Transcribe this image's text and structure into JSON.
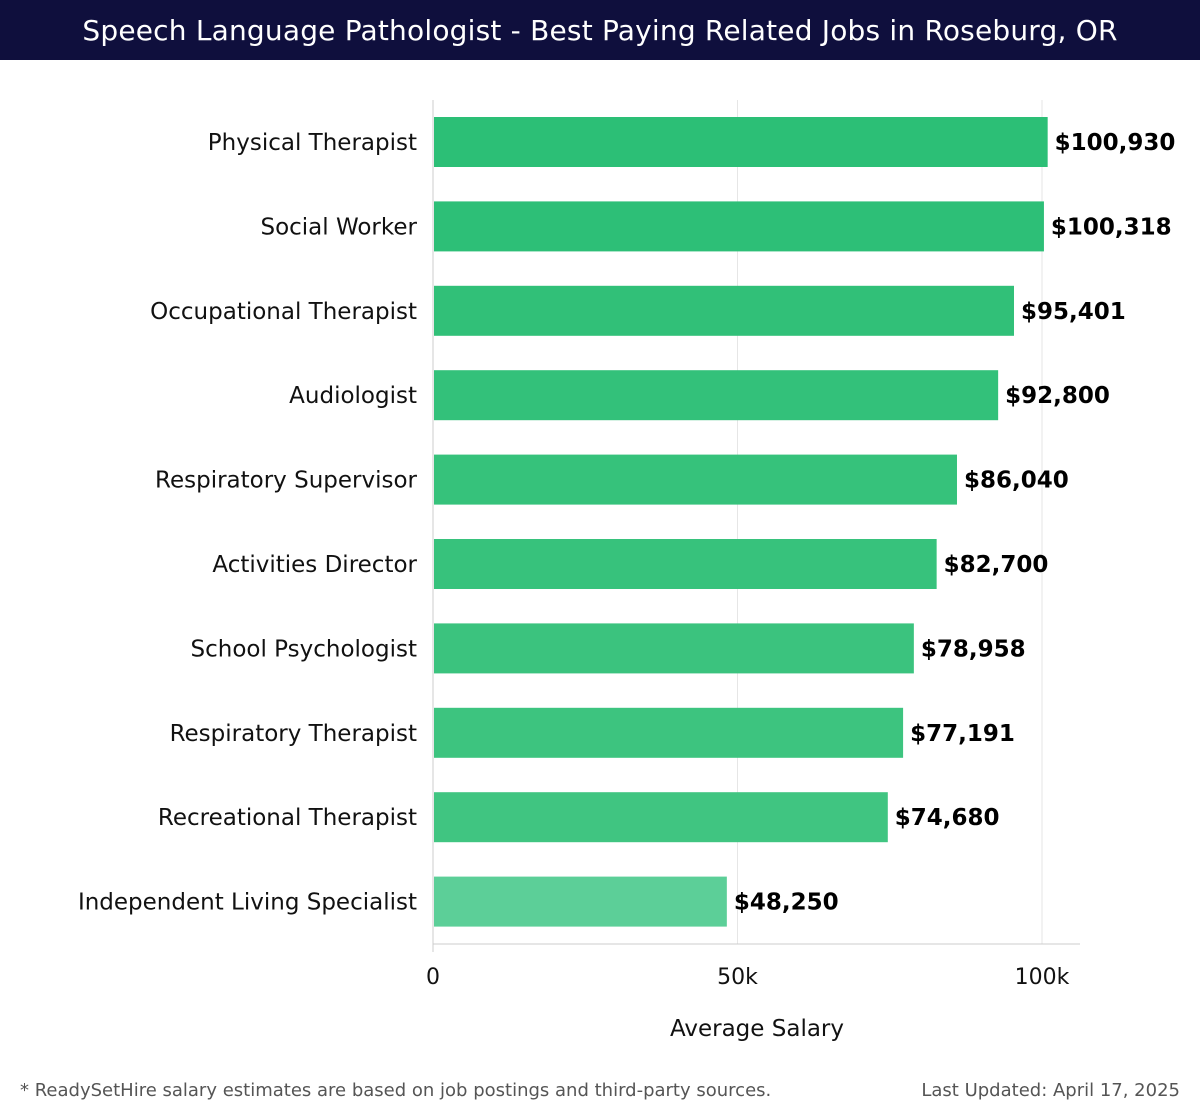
{
  "header": {
    "title": "Speech Language Pathologist - Best Paying Related Jobs in Roseburg, OR"
  },
  "chart_data": {
    "type": "bar",
    "orientation": "horizontal",
    "title": "Speech Language Pathologist - Best Paying Related Jobs in Roseburg, OR",
    "xlabel": "Average Salary",
    "ylabel": "",
    "xlim": [
      0,
      106000
    ],
    "ticks": [
      0,
      50000,
      100000
    ],
    "tick_labels": [
      "0",
      "50k",
      "100k"
    ],
    "categories": [
      "Physical Therapist",
      "Social Worker",
      "Occupational Therapist",
      "Audiologist",
      "Respiratory Supervisor",
      "Activities Director",
      "School Psychologist",
      "Respiratory Therapist",
      "Recreational Therapist",
      "Independent Living Specialist"
    ],
    "values": [
      100930,
      100318,
      95401,
      92800,
      86040,
      82700,
      78958,
      77191,
      74680,
      48250
    ],
    "value_labels": [
      "$100,930",
      "$100,318",
      "$95,401",
      "$92,800",
      "$86,040",
      "$82,700",
      "$78,958",
      "$77,191",
      "$74,680",
      "$48,250"
    ],
    "colors": [
      "#2cbf76",
      "#2dbf77",
      "#31c078",
      "#33c17a",
      "#36c27b",
      "#37c27c",
      "#3bc37e",
      "#3dc47f",
      "#40c581",
      "#5ccf98"
    ],
    "grid": true
  },
  "footer": {
    "note": "* ReadySetHire salary estimates are based on job postings and third-party sources.",
    "updated": "Last Updated: April 17, 2025"
  }
}
